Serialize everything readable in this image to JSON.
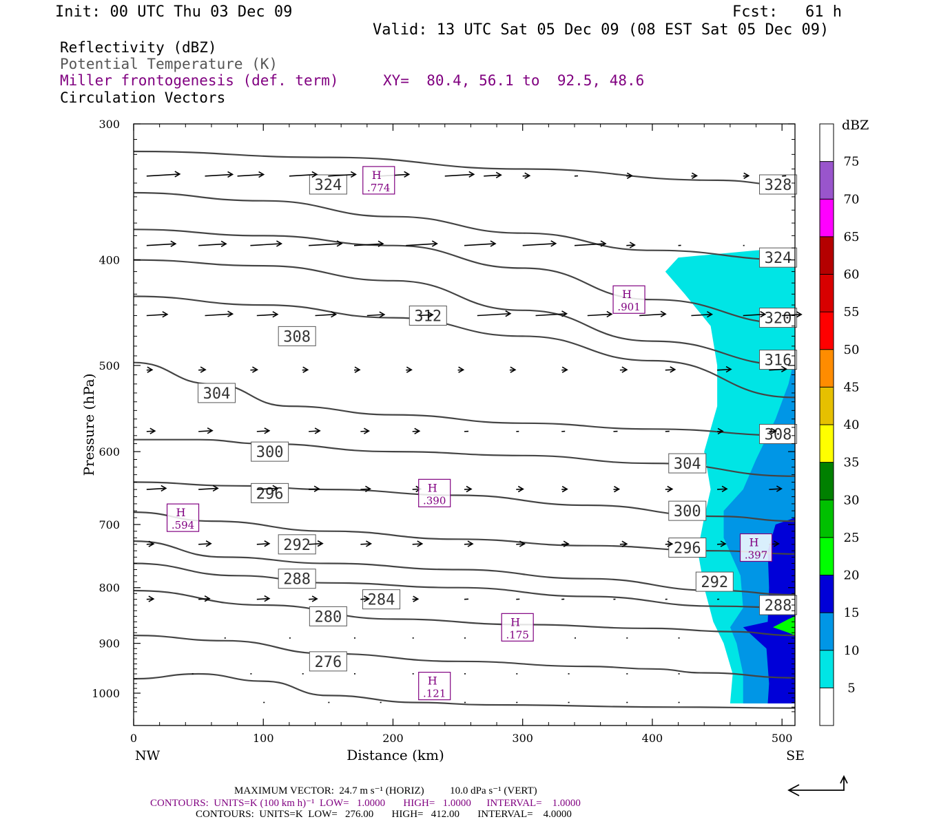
{
  "header": {
    "init": "Init: 00 UTC Thu 03 Dec 09",
    "fcst": "Fcst:   61 h",
    "valid": "Valid: 13 UTC Sat 05 Dec 09 (08 EST Sat 05 Dec 09)",
    "field1": "Reflectivity (dBZ)",
    "field2": "Potential Temperature (K)",
    "field3": "Miller frontogenesis (def. term)",
    "xy": "XY=  80.4, 56.1 to  92.5, 48.6",
    "field4": "Circulation Vectors"
  },
  "footer": {
    "maxvec": "MAXIMUM VECTOR:  24.7 m s⁻¹ (HORIZ)          10.0 dPa s⁻¹ (VERT)",
    "contours1": "CONTOURS:  UNITS=K (100 km h)⁻¹  LOW=   1.0000       HIGH=   1.0000      INTERVAL=    1.0000",
    "contours2": "CONTOURS:  UNITS=K  LOW=   276.00       HIGH=   412.00       INTERVAL=    4.0000"
  },
  "colors": {
    "theta": "#444444",
    "fronto": "#800080",
    "cyan": "#00e5e5",
    "lightblue": "#0096e6",
    "blue": "#0000d8"
  },
  "chart_data": {
    "type": "cross-section",
    "xlabel": "Distance (km)",
    "ylabel": "Pressure (hPa)",
    "xlim": [
      0,
      510
    ],
    "ylim": [
      300,
      1040
    ],
    "yscale": "log-pressure",
    "x_ticks": [
      "0",
      "100",
      "200",
      "300",
      "400",
      "500"
    ],
    "y_ticks": [
      "300",
      "400",
      "500",
      "600",
      "700",
      "800",
      "900",
      "1000"
    ],
    "x_end_labels": {
      "left": "NW",
      "right": "SE"
    },
    "colorbar": {
      "unit": "dBZ",
      "labels": [
        "5",
        "10",
        "15",
        "20",
        "25",
        "30",
        "35",
        "40",
        "45",
        "50",
        "55",
        "60",
        "65",
        "70",
        "75"
      ],
      "colors": [
        "#ffffff",
        "#00e5e5",
        "#0096e6",
        "#0000d8",
        "#00ff00",
        "#00c000",
        "#008000",
        "#ffff00",
        "#e6c000",
        "#ff8c00",
        "#ff0000",
        "#d80000",
        "#b40000",
        "#ff00ff",
        "#9955cc"
      ]
    },
    "theta_contours": [
      {
        "label": "328",
        "points": [
          [
            0,
            318
          ],
          [
            150,
            322
          ],
          [
            300,
            330
          ],
          [
            450,
            338
          ],
          [
            510,
            342
          ]
        ],
        "labels_at": [
          [
            497,
            341
          ]
        ]
      },
      {
        "label": "324",
        "points": [
          [
            0,
            347
          ],
          [
            100,
            353
          ],
          [
            200,
            365
          ],
          [
            300,
            378
          ],
          [
            400,
            392
          ],
          [
            510,
            400
          ]
        ],
        "labels_at": [
          [
            150,
            341
          ],
          [
            497,
            398
          ]
        ]
      },
      {
        "label": "320",
        "points": [
          [
            0,
            375
          ],
          [
            100,
            380
          ],
          [
            200,
            388
          ],
          [
            300,
            407
          ],
          [
            400,
            435
          ],
          [
            510,
            458
          ]
        ],
        "labels_at": [
          [
            497,
            452
          ]
        ]
      },
      {
        "label": "316",
        "points": [
          [
            0,
            400
          ],
          [
            100,
            405
          ],
          [
            200,
            418
          ],
          [
            300,
            445
          ],
          [
            400,
            475
          ],
          [
            510,
            500
          ]
        ],
        "labels_at": [
          [
            497,
            494
          ]
        ]
      },
      {
        "label": "312",
        "points": [
          [
            0,
            432
          ],
          [
            100,
            440
          ],
          [
            200,
            452
          ],
          [
            300,
            470
          ],
          [
            400,
            495
          ],
          [
            510,
            535
          ]
        ],
        "labels_at": [
          [
            227,
            450
          ]
        ]
      },
      {
        "label": "308",
        "points": [
          [
            0,
            497
          ],
          [
            60,
            520
          ],
          [
            120,
            545
          ],
          [
            200,
            555
          ],
          [
            300,
            565
          ],
          [
            400,
            572
          ],
          [
            510,
            580
          ]
        ],
        "labels_at": [
          [
            126,
            470
          ],
          [
            497,
            578
          ]
        ]
      },
      {
        "label": "304",
        "points": [
          [
            0,
            585
          ],
          [
            50,
            585
          ],
          [
            100,
            590
          ],
          [
            200,
            600
          ],
          [
            300,
            605
          ],
          [
            400,
            615
          ],
          [
            510,
            632
          ]
        ],
        "labels_at": [
          [
            64,
            530
          ],
          [
            427,
            615
          ]
        ]
      },
      {
        "label": "300",
        "points": [
          [
            0,
            640
          ],
          [
            80,
            645
          ],
          [
            150,
            650
          ],
          [
            250,
            658
          ],
          [
            350,
            672
          ],
          [
            450,
            688
          ],
          [
            510,
            695
          ]
        ],
        "labels_at": [
          [
            105,
            600
          ],
          [
            427,
            680
          ]
        ]
      },
      {
        "label": "296",
        "points": [
          [
            0,
            682
          ],
          [
            60,
            695
          ],
          [
            150,
            710
          ],
          [
            250,
            722
          ],
          [
            350,
            732
          ],
          [
            450,
            740
          ],
          [
            510,
            745
          ]
        ],
        "labels_at": [
          [
            105,
            655
          ],
          [
            427,
            735
          ]
        ]
      },
      {
        "label": "292",
        "points": [
          [
            0,
            725
          ],
          [
            70,
            750
          ],
          [
            150,
            760
          ],
          [
            250,
            770
          ],
          [
            350,
            785
          ],
          [
            450,
            805
          ],
          [
            510,
            812
          ]
        ],
        "labels_at": [
          [
            126,
            730
          ],
          [
            448,
            790
          ]
        ]
      },
      {
        "label": "288",
        "points": [
          [
            0,
            760
          ],
          [
            80,
            780
          ],
          [
            150,
            792
          ],
          [
            250,
            800
          ],
          [
            350,
            815
          ],
          [
            450,
            832
          ],
          [
            510,
            835
          ]
        ],
        "labels_at": [
          [
            126,
            785
          ],
          [
            497,
            830
          ]
        ]
      },
      {
        "label": "284",
        "points": [
          [
            0,
            805
          ],
          [
            100,
            830
          ],
          [
            200,
            855
          ],
          [
            300,
            865
          ],
          [
            400,
            872
          ],
          [
            460,
            878
          ],
          [
            510,
            885
          ]
        ],
        "labels_at": [
          [
            191,
            820
          ]
        ]
      },
      {
        "label": "280",
        "points": [
          [
            0,
            885
          ],
          [
            70,
            895
          ],
          [
            150,
            920
          ],
          [
            250,
            935
          ],
          [
            350,
            945
          ],
          [
            400,
            950
          ],
          [
            440,
            958
          ],
          [
            510,
            968
          ]
        ],
        "labels_at": [
          [
            150,
            850
          ]
        ]
      },
      {
        "label": "276",
        "points": [
          [
            0,
            970
          ],
          [
            50,
            960
          ],
          [
            100,
            975
          ],
          [
            150,
            1005
          ],
          [
            220,
            1020
          ],
          [
            272,
            1025
          ],
          [
            420,
            1030
          ],
          [
            510,
            1032
          ]
        ],
        "labels_at": [
          [
            150,
            935
          ]
        ]
      }
    ],
    "frontogenesis_maxima": [
      {
        "symbol": "H",
        "value": ".774",
        "x": 189,
        "p": 338
      },
      {
        "symbol": "H",
        "value": ".901",
        "x": 382,
        "p": 435
      },
      {
        "symbol": "H",
        "value": ".390",
        "x": 232,
        "p": 655
      },
      {
        "symbol": "H",
        "value": ".594",
        "x": 38,
        "p": 690
      },
      {
        "symbol": "H",
        "value": ".397",
        "x": 480,
        "p": 735
      },
      {
        "symbol": "H",
        "value": ".175",
        "x": 296,
        "p": 870
      },
      {
        "symbol": "H",
        "value": ".121",
        "x": 232,
        "p": 985
      }
    ],
    "reflectivity": {
      "5": {
        "x": [
          410,
          510
        ],
        "p": [
          390,
          1020
        ]
      },
      "10": {
        "x": [
          450,
          510
        ],
        "p": [
          470,
          1020
        ]
      },
      "15": {
        "x": [
          485,
          510
        ],
        "p": [
          700,
          1020
        ]
      },
      "20": {
        "x": [
          490,
          510
        ],
        "p": [
          860,
          890
        ]
      }
    }
  }
}
